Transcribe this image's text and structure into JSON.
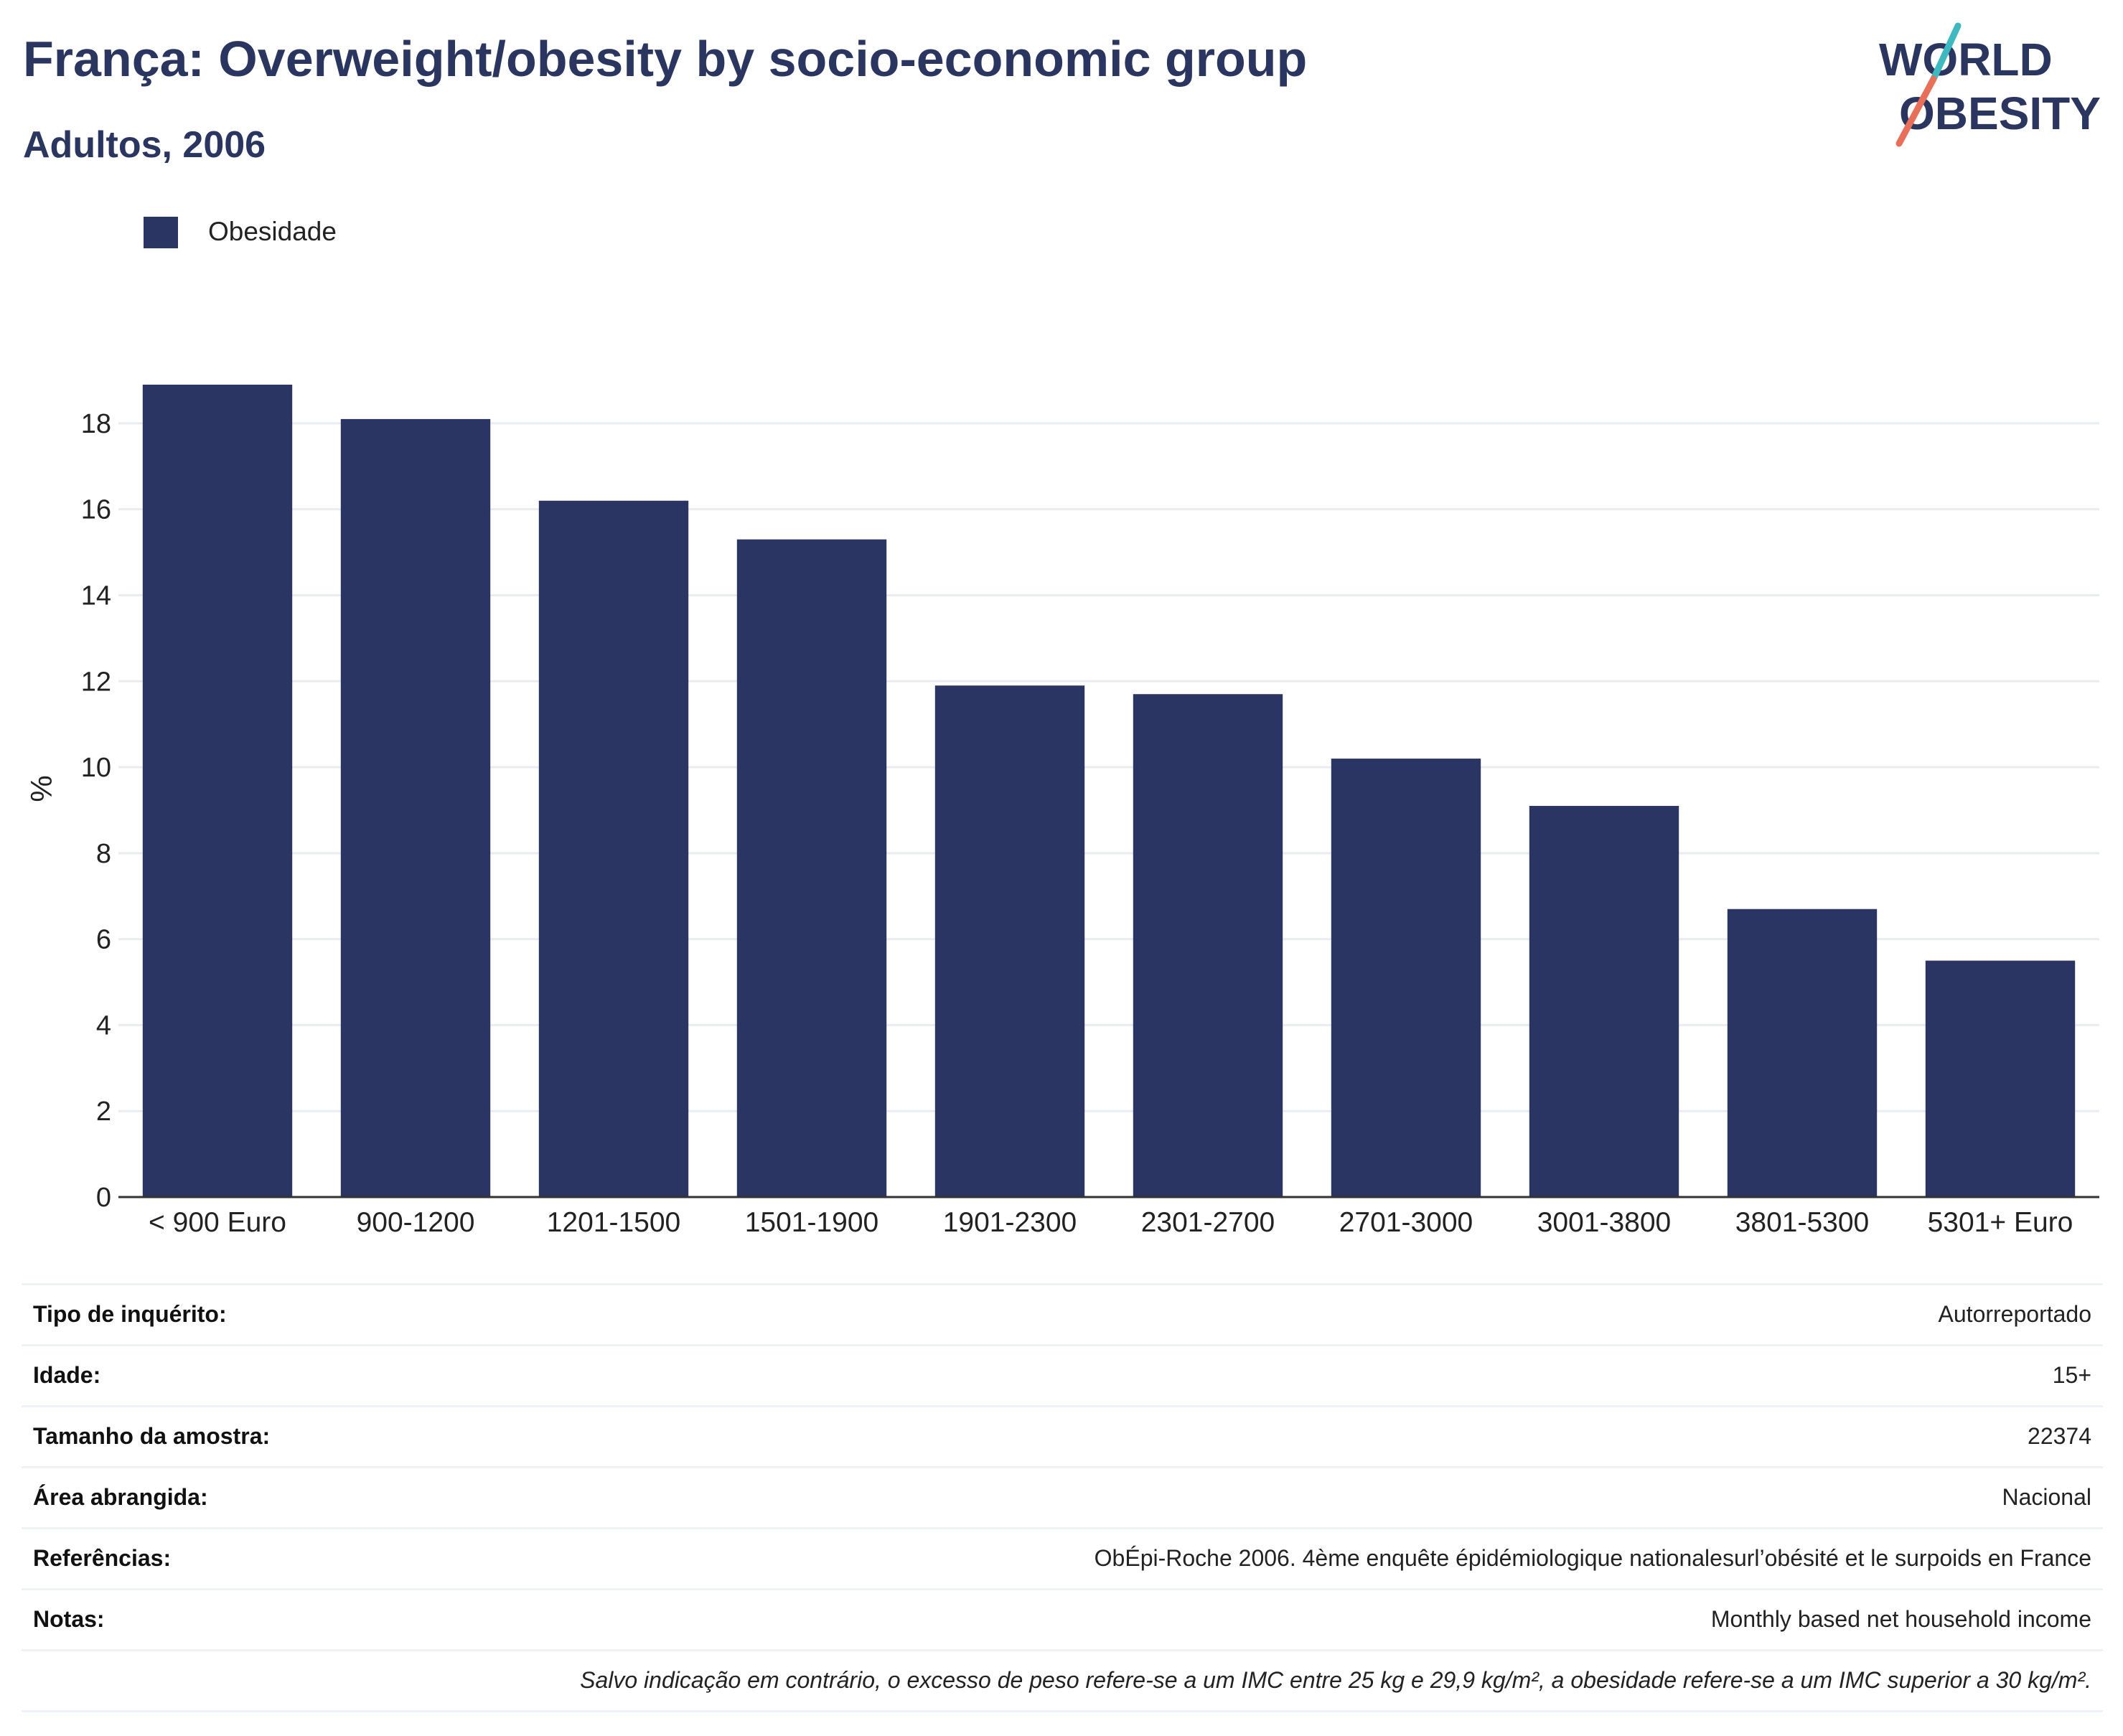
{
  "header": {
    "title": "França: Overweight/obesity by socio-economic group",
    "subtitle": "Adultos, 2006"
  },
  "logo": {
    "line1": "WORLD",
    "line2": "OBESITY",
    "colors": {
      "text": "#2b3660",
      "slash_teal": "#3fb8c0",
      "slash_coral": "#e8705a"
    }
  },
  "legend": {
    "label": "Obesidade",
    "color": "#2a3563"
  },
  "chart_data": {
    "type": "bar",
    "categories": [
      "< 900 Euro",
      "900-1200",
      "1201-1500",
      "1501-1900",
      "1901-2300",
      "2301-2700",
      "2701-3000",
      "3001-3800",
      "3801-5300",
      "5301+ Euro"
    ],
    "series": [
      {
        "name": "Obesidade",
        "color": "#2a3563",
        "values": [
          18.9,
          18.1,
          16.2,
          15.3,
          11.9,
          11.7,
          10.2,
          9.1,
          6.7,
          5.5
        ]
      }
    ],
    "ylabel": "%",
    "xlabel": "",
    "ylim": [
      0,
      19
    ],
    "yticks": [
      0,
      2,
      4,
      6,
      8,
      10,
      12,
      14,
      16,
      18
    ],
    "grid": true,
    "legend_position": "top-left"
  },
  "info": {
    "rows": [
      {
        "key": "Tipo de inquérito:",
        "value": "Autorreportado"
      },
      {
        "key": "Idade:",
        "value": "15+"
      },
      {
        "key": "Tamanho da amostra:",
        "value": "22374"
      },
      {
        "key": "Área abrangida:",
        "value": "Nacional"
      },
      {
        "key": "Referências:",
        "value": "ObÉpi-Roche 2006. 4ème enquête épidémiologique nationalesurl’obésité et le surpoids en France"
      },
      {
        "key": "Notas:",
        "value": "Monthly based net household income"
      }
    ],
    "footnote": "Salvo indicação em contrário, o excesso de peso refere-se a um IMC entre 25 kg e 29,9 kg/m², a obesidade refere-se a um IMC superior a 30 kg/m²."
  }
}
